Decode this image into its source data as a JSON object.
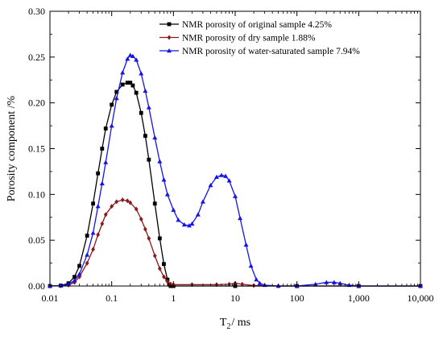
{
  "chart_data": {
    "type": "line",
    "xlabel_main": "T",
    "xlabel_sub": "2",
    "xlabel_unit": "/ ms",
    "ylabel": "Porosity component /%",
    "xscale": "log",
    "xlim": [
      0.01,
      10000
    ],
    "ylim": [
      0,
      0.3
    ],
    "x_ticks": [
      {
        "value": 0.01,
        "label": "0.01"
      },
      {
        "value": 0.1,
        "label": "0.1"
      },
      {
        "value": 1,
        "label": "1"
      },
      {
        "value": 10,
        "label": "10"
      },
      {
        "value": 100,
        "label": "100"
      },
      {
        "value": 1000,
        "label": "1,000"
      },
      {
        "value": 10000,
        "label": "10,000"
      }
    ],
    "y_ticks": [
      {
        "value": 0.0,
        "label": "0.00"
      },
      {
        "value": 0.05,
        "label": "0.05"
      },
      {
        "value": 0.1,
        "label": "0.10"
      },
      {
        "value": 0.15,
        "label": "0.15"
      },
      {
        "value": 0.2,
        "label": "0.20"
      },
      {
        "value": 0.25,
        "label": "0.25"
      },
      {
        "value": 0.3,
        "label": "0.30"
      }
    ],
    "grid": false,
    "legend_position": "top-right",
    "series": [
      {
        "name": "NMR porosity of original sample 4.25%",
        "color": "#000000",
        "marker": "square",
        "x": [
          0.01,
          0.015,
          0.02,
          0.025,
          0.03,
          0.04,
          0.05,
          0.06,
          0.07,
          0.08,
          0.1,
          0.12,
          0.15,
          0.18,
          0.2,
          0.22,
          0.25,
          0.3,
          0.35,
          0.4,
          0.5,
          0.6,
          0.7,
          0.8,
          0.85,
          0.9,
          1,
          10,
          100,
          1000,
          10000
        ],
        "y": [
          0,
          0.0005,
          0.003,
          0.01,
          0.022,
          0.055,
          0.09,
          0.123,
          0.15,
          0.172,
          0.198,
          0.212,
          0.22,
          0.222,
          0.222,
          0.219,
          0.211,
          0.189,
          0.164,
          0.138,
          0.09,
          0.052,
          0.024,
          0.007,
          0.002,
          0,
          0,
          0,
          0,
          0,
          0
        ]
      },
      {
        "name": "NMR porosity of dry sample 1.88%",
        "color": "#8B1A1A",
        "marker": "diamond",
        "x": [
          0.01,
          0.015,
          0.02,
          0.025,
          0.03,
          0.04,
          0.05,
          0.06,
          0.07,
          0.08,
          0.1,
          0.12,
          0.15,
          0.18,
          0.2,
          0.25,
          0.3,
          0.35,
          0.4,
          0.5,
          0.6,
          0.7,
          0.8,
          0.9,
          1,
          2,
          5,
          8,
          10,
          13,
          20,
          50,
          100,
          1000,
          10000
        ],
        "y": [
          0,
          0.0002,
          0.001,
          0.004,
          0.01,
          0.025,
          0.04,
          0.056,
          0.068,
          0.078,
          0.087,
          0.092,
          0.094,
          0.093,
          0.091,
          0.084,
          0.073,
          0.062,
          0.052,
          0.033,
          0.019,
          0.01,
          0.005,
          0.002,
          0.0015,
          0.0015,
          0.0015,
          0.002,
          0.003,
          0.002,
          0.0005,
          0,
          0,
          0,
          0
        ]
      },
      {
        "name": "NMR porosity of water-saturated sample 7.94%",
        "color": "#1414E6",
        "marker": "triangle",
        "x": [
          0.01,
          0.015,
          0.02,
          0.025,
          0.03,
          0.04,
          0.05,
          0.06,
          0.07,
          0.08,
          0.1,
          0.12,
          0.15,
          0.18,
          0.2,
          0.22,
          0.25,
          0.3,
          0.35,
          0.4,
          0.5,
          0.6,
          0.7,
          0.8,
          1,
          1.2,
          1.5,
          1.8,
          2,
          2.5,
          3,
          4,
          5,
          6,
          7,
          8,
          10,
          12,
          15,
          18,
          22,
          25,
          30,
          50,
          100,
          200,
          300,
          400,
          500,
          700,
          1000,
          10000
        ],
        "y": [
          0,
          0.0005,
          0.002,
          0.006,
          0.013,
          0.034,
          0.058,
          0.087,
          0.112,
          0.135,
          0.175,
          0.205,
          0.233,
          0.248,
          0.252,
          0.251,
          0.247,
          0.232,
          0.213,
          0.195,
          0.162,
          0.136,
          0.116,
          0.1,
          0.083,
          0.072,
          0.067,
          0.066,
          0.068,
          0.078,
          0.092,
          0.11,
          0.119,
          0.121,
          0.12,
          0.115,
          0.098,
          0.074,
          0.045,
          0.022,
          0.007,
          0.003,
          0.001,
          0,
          0,
          0.002,
          0.004,
          0.004,
          0.003,
          0.001,
          0,
          0
        ]
      }
    ]
  }
}
